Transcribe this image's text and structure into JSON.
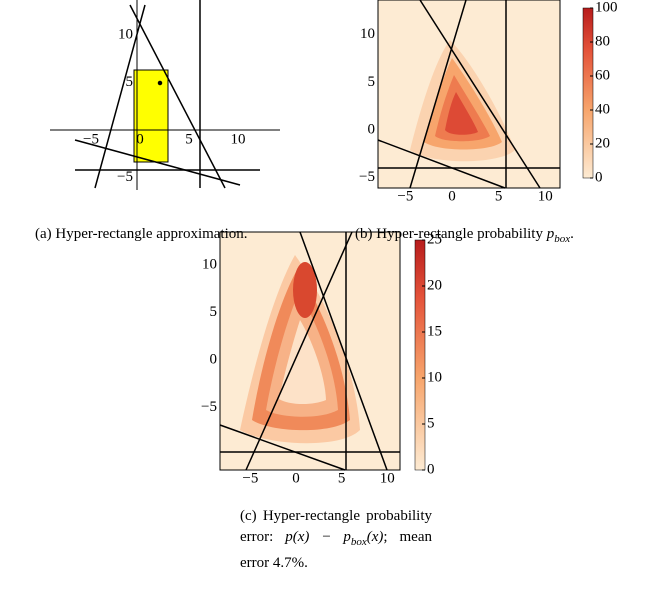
{
  "panels": [
    {
      "xticks": [
        {
          "value": -5,
          "label": "−5"
        },
        0,
        5,
        10
      ],
      "yticks": [
        {
          "value": -5,
          "label": "−5"
        },
        5,
        10
      ],
      "caption": [
        {
          "text": "(a) Hyper-rectangle approximation."
        }
      ]
    },
    {
      "xticks": [
        {
          "value": -5,
          "label": "−5"
        },
        0,
        5,
        10
      ],
      "yticks": [
        {
          "value": -5,
          "label": "−5"
        },
        0,
        5,
        10
      ],
      "colorbar_ticks": [
        0,
        20,
        40,
        60,
        80,
        100
      ],
      "caption": [
        {
          "text": "(b) Hyper-rectangle probability "
        },
        {
          "math": "p"
        },
        {
          "sub": "box"
        },
        {
          "text": "."
        }
      ]
    },
    {
      "xticks": [
        {
          "value": -5,
          "label": "−5"
        },
        0,
        5,
        10
      ],
      "yticks": [
        {
          "value": -5,
          "label": "−5"
        },
        0,
        5,
        10
      ],
      "colorbar_ticks": [
        0,
        5,
        10,
        15,
        20,
        25
      ],
      "caption": [
        {
          "text": "(c) Hyper-rectangle probability error: "
        },
        {
          "math": "p(x) − p"
        },
        {
          "sub": "box"
        },
        {
          "math": "(x)"
        },
        {
          "text": "; mean error 4.7%."
        }
      ]
    }
  ]
}
